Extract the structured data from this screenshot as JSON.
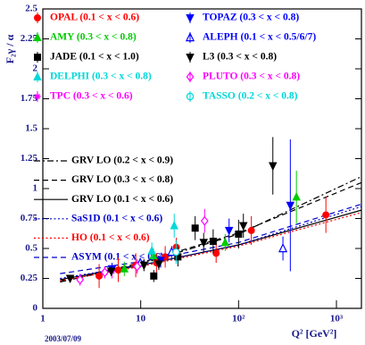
{
  "chart_data": {
    "type": "errorbar",
    "y_label": "F₂γ / α",
    "x_label": "Q² [GeV²]",
    "date": "2003/07/09",
    "log_x": true,
    "xlim": [
      1,
      1800
    ],
    "ylim": [
      0,
      2.5
    ],
    "xticks": [
      1,
      10,
      {
        "value": 100,
        "label": "10²"
      },
      {
        "value": 1000,
        "label": "10³"
      }
    ],
    "yticks": [
      0,
      0.25,
      0.5,
      0.75,
      1,
      1.25,
      1.5,
      1.75,
      2,
      2.25,
      2.5
    ],
    "series": [
      {
        "name": "OPAL (0.1 < x < 0.6)",
        "color": "#ff0000",
        "marker": "circle",
        "x": [
          3.76,
          5.9,
          8.9,
          14.5,
          17.8,
          23.1,
          59,
          135,
          780
        ],
        "values": [
          0.27,
          0.32,
          0.36,
          0.38,
          0.43,
          0.51,
          0.46,
          0.65,
          0.78
        ],
        "errors": [
          0.1,
          0.1,
          0.1,
          0.08,
          0.09,
          0.08,
          0.08,
          0.12,
          0.15
        ]
      },
      {
        "name": "AMY (0.3 < x < 0.8)",
        "color": "#00cc00",
        "marker": "triangle-up",
        "x": [
          6.8,
          13.5,
          73,
          390
        ],
        "values": [
          0.33,
          0.44,
          0.55,
          0.93
        ],
        "errors": [
          0.06,
          0.06,
          0.07,
          0.22
        ]
      },
      {
        "name": "JADE (0.1 < x < 1.0)",
        "color": "#000000",
        "marker": "square",
        "x": [
          13.6,
          24,
          36,
          55,
          100
        ],
        "values": [
          0.27,
          0.43,
          0.67,
          0.56,
          0.62
        ],
        "errors": [
          0.05,
          0.08,
          0.1,
          0.1,
          0.12
        ]
      },
      {
        "name": "DELPHI (0.3 < x < 0.8)",
        "color": "#00d8d8",
        "marker": "triangle-up",
        "x": [
          13,
          22
        ],
        "values": [
          0.48,
          0.69
        ],
        "errors": [
          0.07,
          0.1
        ]
      },
      {
        "name": "TPC (0.3 < x < 0.6)",
        "color": "#ff00ff",
        "marker": "star",
        "x": [
          2.4,
          4.3,
          5.1,
          9.2
        ],
        "values": [
          0.24,
          0.3,
          0.31,
          0.35
        ],
        "errors": [
          0.05,
          0.05,
          0.06,
          0.06
        ]
      },
      {
        "name": "TOPAZ (0.3 < x < 0.8)",
        "color": "#0000ff",
        "marker": "triangle-down",
        "x": [
          5.1,
          16,
          80,
          338
        ],
        "values": [
          0.33,
          0.4,
          0.65,
          0.86
        ],
        "errors": [
          0.05,
          0.06,
          0.1,
          0.55
        ]
      },
      {
        "name": "ALEPH (0.1 < x < 0.5/6/7)",
        "color": "#0000ff",
        "marker": "triangle-up-open",
        "x": [
          9.9,
          20.7,
          284
        ],
        "values": [
          0.38,
          0.47,
          0.5
        ],
        "errors": [
          0.04,
          0.05,
          0.1
        ]
      },
      {
        "name": "L3 (0.3 < x < 0.8)",
        "color": "#000000",
        "marker": "triangle-down",
        "x": [
          1.9,
          5,
          10.8,
          15.3,
          23.1,
          44,
          112,
          224
        ],
        "values": [
          0.25,
          0.31,
          0.36,
          0.37,
          0.45,
          0.55,
          0.69,
          1.19
        ],
        "errors": [
          0.03,
          0.04,
          0.05,
          0.05,
          0.06,
          0.08,
          0.1,
          0.24
        ]
      },
      {
        "name": "PLUTO (0.3 < x < 0.8)",
        "color": "#ff00ff",
        "marker": "diamond-open",
        "x": [
          2.4,
          4.3,
          9.2,
          45
        ],
        "values": [
          0.24,
          0.3,
          0.35,
          0.73
        ],
        "errors": [
          0.04,
          0.04,
          0.05,
          0.1
        ]
      },
      {
        "name": "TASSO (0.2 < x < 0.8)",
        "color": "#00d8d8",
        "marker": "circle-open",
        "x": [
          23
        ],
        "values": [
          0.47
        ],
        "errors": [
          0.1
        ]
      }
    ],
    "curves": [
      {
        "name": "GRV LO (0.2 < x < 0.9)",
        "color": "#000000",
        "style": "dashdot",
        "x": [
          1.5,
          10,
          100,
          1800
        ],
        "values": [
          0.22,
          0.37,
          0.62,
          1.1
        ]
      },
      {
        "name": "GRV LO (0.3 < x < 0.8)",
        "color": "#000000",
        "style": "dashed",
        "x": [
          1.5,
          10,
          100,
          1800
        ],
        "values": [
          0.23,
          0.38,
          0.63,
          1.05
        ]
      },
      {
        "name": "GRV LO (0.1 < x < 0.6)",
        "color": "#000000",
        "style": "solid",
        "x": [
          1.5,
          10,
          100,
          1800
        ],
        "values": [
          0.24,
          0.36,
          0.53,
          0.82
        ]
      },
      {
        "name": "SaS1D (0.1 < x < 0.6)",
        "color": "#0000cc",
        "style": "dotted",
        "x": [
          1.5,
          10,
          100,
          1800
        ],
        "values": [
          0.25,
          0.36,
          0.53,
          0.85
        ]
      },
      {
        "name": "HO (0.1 < x < 0.6)",
        "color": "#ff0000",
        "style": "dotted",
        "x": [
          1.5,
          10,
          100,
          1800
        ],
        "values": [
          0.23,
          0.35,
          0.52,
          0.8
        ]
      },
      {
        "name": "ASYM (0.1 < x < 0.6)",
        "color": "#0000cc",
        "style": "dashed",
        "x": [
          1.5,
          10,
          100,
          1800
        ],
        "values": [
          0.29,
          0.39,
          0.55,
          0.87
        ]
      }
    ]
  }
}
